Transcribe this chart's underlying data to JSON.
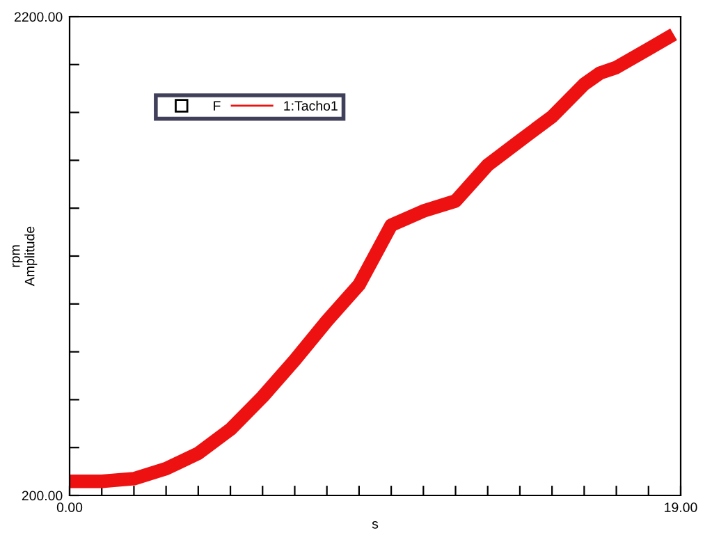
{
  "chart_data": {
    "type": "line",
    "xlabel": "s",
    "ylabel": "rpm\nAmplitude",
    "legend_title": "F",
    "x": [
      0,
      1,
      2,
      3,
      4,
      5,
      6,
      7,
      8,
      9,
      10,
      11,
      12,
      13,
      14,
      15,
      16,
      16.5,
      17,
      18,
      18.6
    ],
    "series": [
      {
        "name": "1:Tacho1",
        "color": "#ee1111",
        "values": [
          259,
          259,
          270,
          312,
          376,
          476,
          612,
          765,
          929,
          1080,
          1329,
          1388,
          1430,
          1580,
          1682,
          1782,
          1918,
          1965,
          1988,
          2065,
          2112
        ]
      }
    ],
    "xlim": [
      0,
      19
    ],
    "ylim": [
      200,
      2200
    ],
    "xticks": [
      {
        "value": 0,
        "label": "0.00"
      },
      {
        "value": 1,
        "label": null
      },
      {
        "value": 2,
        "label": null
      },
      {
        "value": 3,
        "label": null
      },
      {
        "value": 4,
        "label": null
      },
      {
        "value": 5,
        "label": null
      },
      {
        "value": 6,
        "label": null
      },
      {
        "value": 7,
        "label": null
      },
      {
        "value": 8,
        "label": null
      },
      {
        "value": 9,
        "label": null
      },
      {
        "value": 10,
        "label": null
      },
      {
        "value": 11,
        "label": null
      },
      {
        "value": 12,
        "label": null
      },
      {
        "value": 13,
        "label": null
      },
      {
        "value": 14,
        "label": null
      },
      {
        "value": 15,
        "label": null
      },
      {
        "value": 16,
        "label": null
      },
      {
        "value": 17,
        "label": null
      },
      {
        "value": 18,
        "label": null
      },
      {
        "value": 19,
        "label": "19.00"
      }
    ],
    "yticks": [
      {
        "value": 200,
        "label": "200.00"
      },
      {
        "value": 400,
        "label": null
      },
      {
        "value": 600,
        "label": null
      },
      {
        "value": 800,
        "label": null
      },
      {
        "value": 1000,
        "label": null
      },
      {
        "value": 1200,
        "label": null
      },
      {
        "value": 1400,
        "label": null
      },
      {
        "value": 1600,
        "label": null
      },
      {
        "value": 1800,
        "label": null
      },
      {
        "value": 2000,
        "label": null
      },
      {
        "value": 2200,
        "label": "2200.00"
      }
    ],
    "grid": false,
    "legend": "top left",
    "line_style": "solid",
    "marker": "none"
  }
}
